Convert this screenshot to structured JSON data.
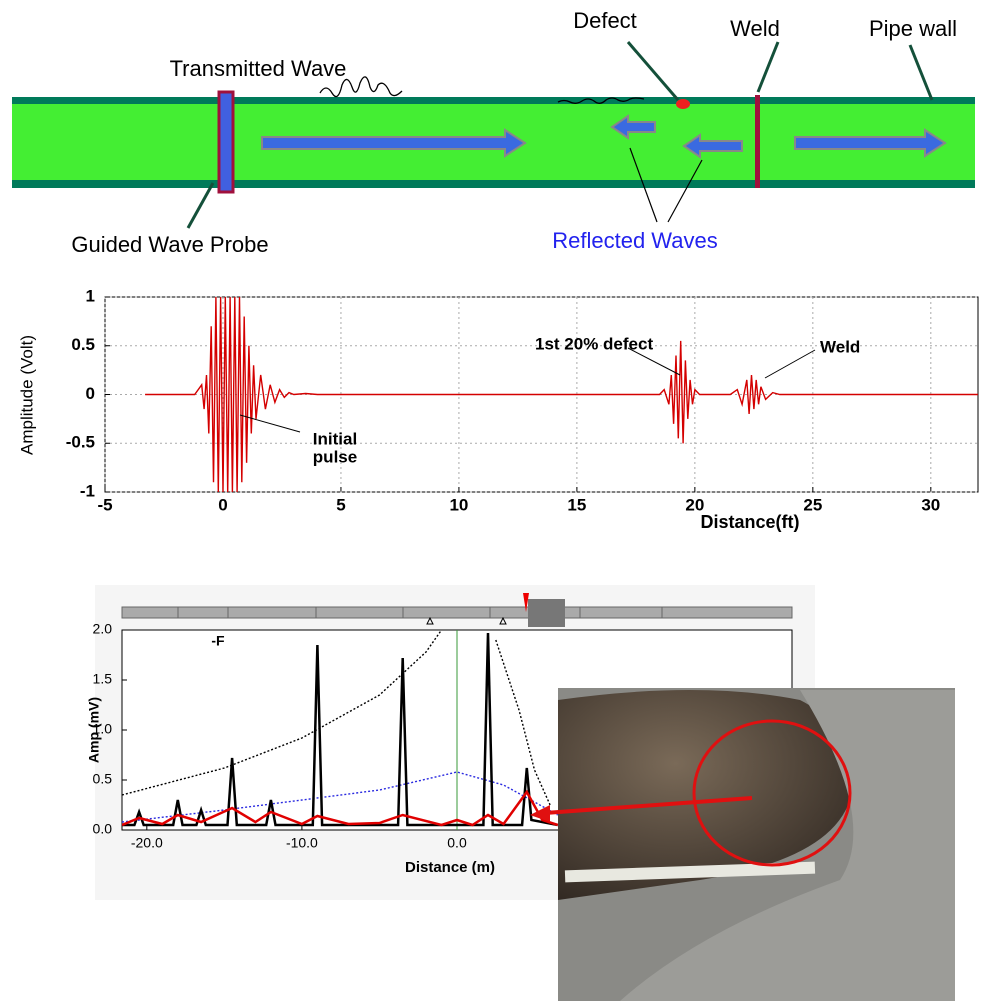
{
  "diagram": {
    "labels": {
      "defect": "Defect",
      "weld": "Weld",
      "pipe_wall": "Pipe wall",
      "transmitted": "Transmitted Wave",
      "probe": "Guided Wave Probe",
      "reflected": "Reflected Waves"
    }
  },
  "chart_data": [
    {
      "type": "line",
      "x_label": "Distance(ft)",
      "y_label": "Amplitude (Volt)",
      "grid": true,
      "xlim": [
        -5,
        32
      ],
      "ylim": [
        -1,
        1
      ],
      "xticks": [
        -5,
        0,
        5,
        10,
        15,
        20,
        25,
        30
      ],
      "yticks": [
        -1,
        -0.5,
        0,
        0.5,
        1
      ],
      "annotations": [
        "1st 20% defect",
        "Weld",
        "Initial",
        "pulse"
      ],
      "series": [
        {
          "color": "#d40000",
          "style": "solid",
          "x": [
            -3.3,
            -1.2,
            -0.9,
            -0.8,
            -0.7,
            -0.6,
            -0.5,
            -0.4,
            -0.3,
            -0.2,
            -0.1,
            0,
            0.1,
            0.2,
            0.3,
            0.4,
            0.5,
            0.6,
            0.7,
            0.8,
            0.9,
            1.0,
            1.1,
            1.2,
            1.3,
            1.4,
            1.6,
            1.8,
            2.0,
            2.2,
            2.4,
            2.6,
            2.8,
            3.0,
            3.5,
            4.0,
            18.5,
            18.7,
            18.9,
            19.0,
            19.1,
            19.2,
            19.3,
            19.4,
            19.5,
            19.6,
            19.7,
            19.8,
            19.9,
            20.0,
            20.2,
            20.5,
            21.5,
            21.8,
            22.0,
            22.2,
            22.3,
            22.4,
            22.5,
            22.6,
            22.7,
            22.8,
            23.0,
            23.3,
            23.6,
            32
          ],
          "values": [
            0,
            0,
            0.1,
            -0.15,
            0.2,
            -0.4,
            0.7,
            -0.9,
            1,
            -1,
            1,
            -1,
            1,
            -1,
            1,
            -1,
            1,
            -1,
            1,
            -0.9,
            0.8,
            -0.7,
            0.5,
            -0.4,
            0.3,
            -0.25,
            0.2,
            -0.15,
            0.1,
            -0.08,
            0.05,
            -0.03,
            0.02,
            0,
            0.01,
            0,
            0,
            0.05,
            -0.1,
            0.2,
            -0.3,
            0.4,
            -0.45,
            0.55,
            -0.5,
            0.35,
            -0.25,
            0.15,
            -0.1,
            0.05,
            0,
            0,
            0,
            0.05,
            -0.1,
            0.15,
            -0.2,
            0.2,
            -0.15,
            0.15,
            -0.1,
            0.08,
            -0.05,
            0.02,
            0,
            0
          ]
        }
      ]
    },
    {
      "type": "line",
      "x_label": "Distance (m)",
      "y_label": "Amp (mV)",
      "grid": false,
      "annotations": [
        "-F"
      ],
      "cursor_x": 0,
      "xlim": [
        -21.6,
        21.6
      ],
      "ylim": [
        0,
        2.0
      ],
      "xticks": [
        {
          "value": -20,
          "label": "-20.0"
        },
        {
          "value": -10,
          "label": "-10.0"
        },
        {
          "value": 0,
          "label": "0.0"
        }
      ],
      "yticks": [
        {
          "value": 0,
          "label": "0.0"
        },
        {
          "value": 0.5,
          "label": "0.5"
        },
        {
          "value": 1,
          "label": "1.0"
        },
        {
          "value": 1.5,
          "label": "1.5"
        },
        {
          "value": 2,
          "label": "2.0"
        }
      ],
      "series": [
        {
          "color": "#000000",
          "style": "dotted",
          "x": [
            -21.6,
            -15,
            -10,
            -5,
            -2,
            -1,
            1,
            2.5,
            4,
            5,
            6
          ],
          "values": [
            0.35,
            0.62,
            0.92,
            1.35,
            1.78,
            2.0,
            null,
            1.9,
            1.2,
            0.6,
            0.25
          ]
        },
        {
          "color": "#2a2ae0",
          "style": "dotted",
          "x": [
            -21.6,
            -15,
            -10,
            -5,
            0,
            3,
            5,
            6.5
          ],
          "values": [
            0.08,
            0.2,
            0.3,
            0.4,
            0.58,
            0.45,
            0.28,
            0.15
          ]
        },
        {
          "color": "#000000",
          "style": "solid",
          "x": [
            -21.6,
            -20.8,
            -20.5,
            -20.2,
            -18.3,
            -18,
            -17.7,
            -16.8,
            -16.5,
            -16.2,
            -14.8,
            -14.5,
            -14.2,
            -12.3,
            -12,
            -11.7,
            -9.3,
            -9,
            -8.7,
            -3.8,
            -3.5,
            -3.2,
            1.7,
            2,
            2.3,
            4.2,
            4.5,
            4.8,
            6.5
          ],
          "values": [
            0.05,
            0.05,
            0.18,
            0.05,
            0.05,
            0.3,
            0.05,
            0.05,
            0.2,
            0.05,
            0.05,
            0.72,
            0.05,
            0.05,
            0.3,
            0.05,
            0.05,
            1.85,
            0.05,
            0.05,
            1.72,
            0.05,
            0.05,
            1.97,
            0.05,
            0.05,
            0.62,
            0.1,
            0.05
          ]
        },
        {
          "color": "#e00000",
          "style": "solid",
          "x": [
            -21.6,
            -20.5,
            -19,
            -18,
            -16.5,
            -14.5,
            -13,
            -12,
            -10,
            -9,
            -7,
            -5,
            -3.5,
            -1,
            0,
            1,
            2,
            3,
            4.5,
            5.5,
            6.5
          ],
          "values": [
            0.05,
            0.12,
            0.06,
            0.15,
            0.08,
            0.22,
            0.08,
            0.18,
            0.06,
            0.14,
            0.06,
            0.07,
            0.15,
            0.05,
            0.1,
            0.05,
            0.15,
            0.06,
            0.38,
            0.1,
            0.05
          ]
        }
      ]
    }
  ]
}
